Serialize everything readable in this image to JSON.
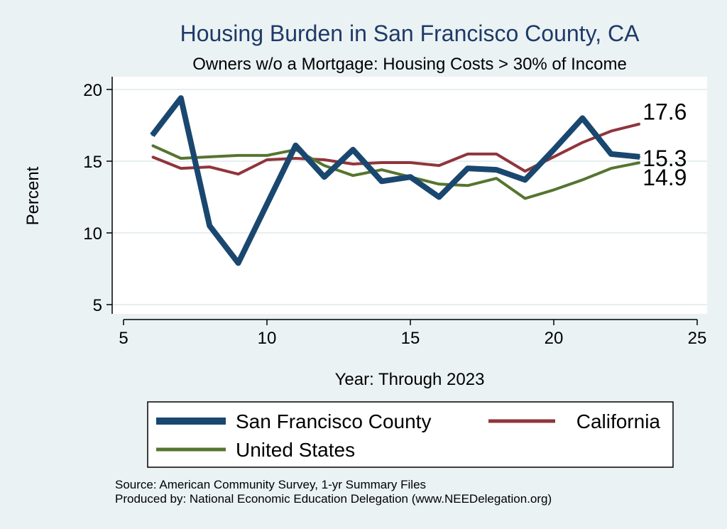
{
  "chart_data": {
    "type": "line",
    "title": "Housing Burden in San Francisco County, CA",
    "subtitle": "Owners w/o a Mortgage: Housing Costs > 30% of Income",
    "xlabel": "Year: Through 2023",
    "ylabel": "Percent",
    "xlim": [
      5,
      25
    ],
    "ylim": [
      5,
      20
    ],
    "xticks": [
      "5",
      "10",
      "15",
      "20",
      "25"
    ],
    "yticks": [
      "5",
      "10",
      "15",
      "20"
    ],
    "grid": true,
    "legend_position": "bottom",
    "x": [
      6,
      7,
      8,
      9,
      10,
      11,
      12,
      13,
      14,
      15,
      16,
      17,
      18,
      19,
      20,
      21,
      22,
      23
    ],
    "series": [
      {
        "name": "San Francisco County",
        "color": "#1a476f",
        "values": [
          16.8,
          19.4,
          10.5,
          7.9,
          12.0,
          16.1,
          13.9,
          15.8,
          13.6,
          13.9,
          12.5,
          14.5,
          14.4,
          13.7,
          15.8,
          18.0,
          15.5,
          15.3
        ],
        "end_label": "15.3"
      },
      {
        "name": "California",
        "color": "#90353b",
        "values": [
          15.3,
          14.5,
          14.6,
          14.1,
          15.1,
          15.2,
          15.1,
          14.8,
          14.9,
          14.9,
          14.7,
          15.5,
          15.5,
          14.3,
          15.3,
          16.3,
          17.1,
          17.6
        ],
        "end_label": "17.6"
      },
      {
        "name": "United States",
        "color": "#55752f",
        "values": [
          16.1,
          15.2,
          15.3,
          15.4,
          15.4,
          15.8,
          14.7,
          14.0,
          14.4,
          13.9,
          13.4,
          13.3,
          13.8,
          12.4,
          13.0,
          13.7,
          14.5,
          14.9
        ],
        "end_label": "14.9"
      }
    ],
    "source_lines": [
      "Source: American Community Survey, 1-yr Summary Files",
      "Produced by: National Economic Education Delegation (www.NEEDelegation.org)"
    ]
  }
}
